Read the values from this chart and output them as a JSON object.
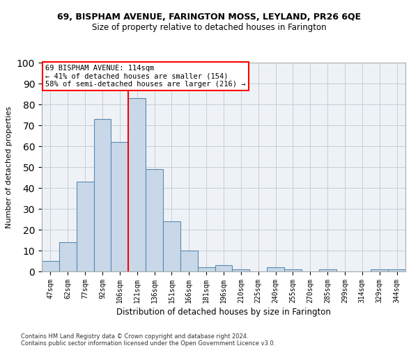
{
  "title1": "69, BISPHAM AVENUE, FARINGTON MOSS, LEYLAND, PR26 6QE",
  "title2": "Size of property relative to detached houses in Farington",
  "xlabel": "Distribution of detached houses by size in Farington",
  "ylabel": "Number of detached properties",
  "categories": [
    "47sqm",
    "62sqm",
    "77sqm",
    "92sqm",
    "106sqm",
    "121sqm",
    "136sqm",
    "151sqm",
    "166sqm",
    "181sqm",
    "196sqm",
    "210sqm",
    "225sqm",
    "240sqm",
    "255sqm",
    "270sqm",
    "285sqm",
    "299sqm",
    "314sqm",
    "329sqm",
    "344sqm"
  ],
  "values": [
    5,
    14,
    43,
    73,
    62,
    83,
    49,
    24,
    10,
    2,
    3,
    1,
    0,
    2,
    1,
    0,
    1,
    0,
    0,
    1,
    1
  ],
  "bar_color": "#c8d8e8",
  "bar_edge_color": "#5a8ab0",
  "vline_x": 4.5,
  "vline_color": "red",
  "annotation_title": "69 BISPHAM AVENUE: 114sqm",
  "annotation_line1": "← 41% of detached houses are smaller (154)",
  "annotation_line2": "58% of semi-detached houses are larger (216) →",
  "annotation_box_color": "red",
  "annotation_bg": "white",
  "ylim": [
    0,
    100
  ],
  "yticks": [
    0,
    10,
    20,
    30,
    40,
    50,
    60,
    70,
    80,
    90,
    100
  ],
  "footer1": "Contains HM Land Registry data © Crown copyright and database right 2024.",
  "footer2": "Contains public sector information licensed under the Open Government Licence v3.0.",
  "bg_color": "#eef2f7",
  "title1_fontsize": 9,
  "title2_fontsize": 8.5,
  "ylabel_fontsize": 8,
  "xlabel_fontsize": 8.5,
  "tick_fontsize": 7,
  "footer_fontsize": 6,
  "annotation_fontsize": 7.5
}
